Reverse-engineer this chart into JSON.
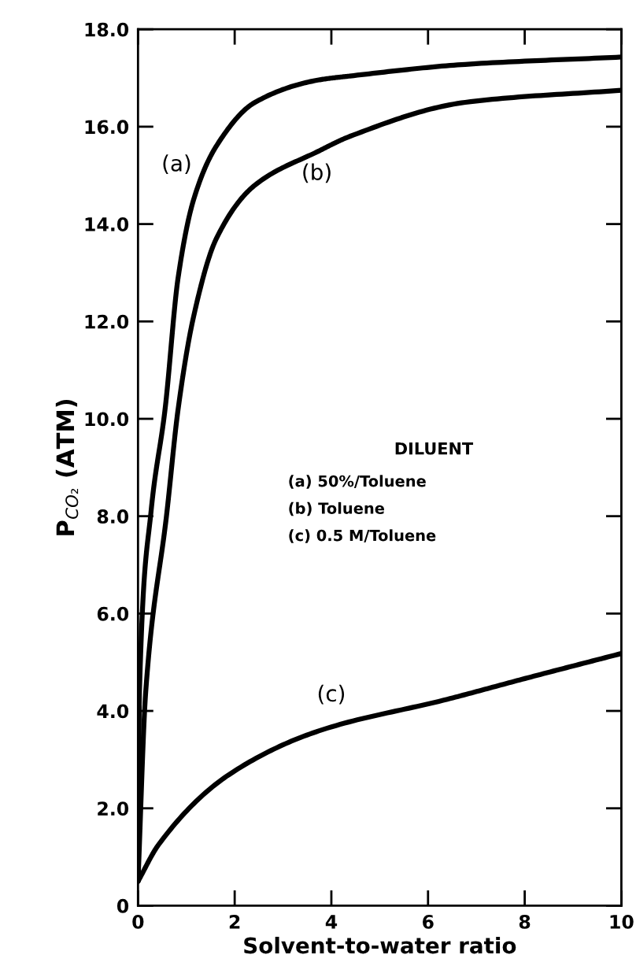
{
  "chart_data": {
    "type": "line",
    "xlabel": "Solvent-to-water ratio",
    "ylabel": "P$_{CO₂}$ (ATM)",
    "xlim": [
      0,
      10
    ],
    "ylim": [
      0,
      18
    ],
    "xticks": [
      0,
      2,
      4,
      6,
      8,
      10
    ],
    "yticks": [
      0,
      {
        "value": 2,
        "label": "2.0"
      },
      {
        "value": 4,
        "label": "4.0"
      },
      {
        "value": 6,
        "label": "6.0"
      },
      {
        "value": 8,
        "label": "8.0"
      },
      {
        "value": 10,
        "label": "10.0"
      },
      {
        "value": 12,
        "label": "12.0"
      },
      {
        "value": 14,
        "label": "14.0"
      },
      {
        "value": 16,
        "label": "16.0"
      },
      {
        "value": 18,
        "label": "18.0"
      }
    ],
    "grid": false,
    "legend": false,
    "marker": "none",
    "line_style": "solid",
    "series": [
      {
        "name": "(a)",
        "color": "#000000",
        "x": [
          0,
          0.03,
          0.27,
          0.56,
          0.83,
          1.15,
          1.62,
          2.42,
          3.74,
          4.38,
          6.77,
          10
        ],
        "values": [
          0.5,
          4.4,
          8.1,
          10.2,
          12.9,
          14.5,
          15.6,
          16.5,
          16.96,
          17.04,
          17.28,
          17.43
        ]
      },
      {
        "name": "(b)",
        "color": "#000000",
        "x": [
          0,
          0.16,
          0.6,
          0.83,
          1.15,
          1.62,
          2.42,
          3.74,
          4.38,
          6.77,
          10
        ],
        "values": [
          0.5,
          4.4,
          8.1,
          10.2,
          12.1,
          13.7,
          14.8,
          15.5,
          15.8,
          16.5,
          16.75
        ]
      },
      {
        "name": "(c)",
        "color": "#000000",
        "x": [
          0,
          0.43,
          1.88,
          3.74,
          6.4,
          8.06,
          10
        ],
        "values": [
          0.5,
          1.26,
          2.69,
          3.59,
          4.24,
          4.68,
          5.18
        ]
      }
    ],
    "annotations": [
      "DILUENT",
      "(a) 50%/Toluene",
      "(b) Toluene",
      "(c) 0.5 M/Toluene"
    ]
  }
}
